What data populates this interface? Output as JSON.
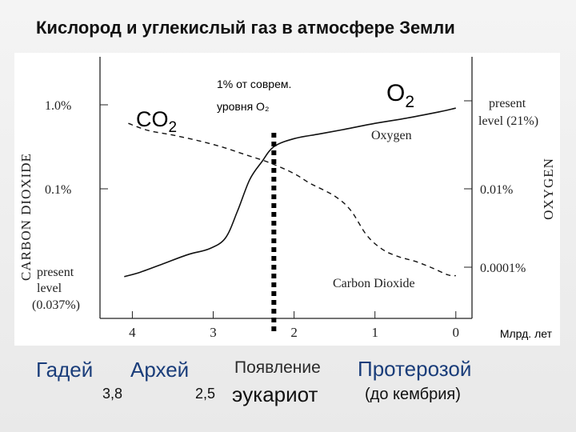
{
  "title": "Кислород и углекислый газ в атмосфере Земли",
  "chart_data": {
    "type": "line",
    "xlim": [
      4.4,
      -0.2
    ],
    "x_ticks": [
      4,
      3,
      2,
      1,
      0
    ],
    "x_tick_labels": [
      "4",
      "3",
      "2",
      "1",
      "0"
    ],
    "x_unit_label": "Млрд. лет",
    "left_axis": {
      "label": "CARBON DIOXIDE",
      "ticks": [
        {
          "label": "1.0%",
          "level": 2
        },
        {
          "label": "0.1%",
          "level": 1
        }
      ],
      "bottom_label": [
        "present",
        "level",
        "(0.037%)"
      ]
    },
    "right_axis": {
      "label": "OXYGEN",
      "ticks": [
        {
          "label": "0.01%",
          "level": 1
        },
        {
          "label": "0.0001%",
          "level": 0
        }
      ],
      "top_label": [
        "present",
        "level (21%)"
      ]
    },
    "series": [
      {
        "name": "Oxygen",
        "style": "solid",
        "x": [
          4.1,
          3.9,
          3.6,
          3.3,
          3.05,
          2.85,
          2.7,
          2.55,
          2.4,
          2.25,
          2.0,
          1.7,
          1.4,
          1.0,
          0.6,
          0.2,
          0.0
        ],
        "y": [
          0.02,
          0.07,
          0.17,
          0.27,
          0.33,
          0.45,
          0.75,
          1.1,
          1.3,
          1.47,
          1.56,
          1.61,
          1.66,
          1.73,
          1.79,
          1.86,
          1.9
        ]
      },
      {
        "name": "Carbon Dioxide",
        "style": "dashed",
        "x": [
          4.05,
          3.8,
          3.5,
          3.2,
          2.9,
          2.6,
          2.3,
          2.0,
          1.8,
          1.5,
          1.3,
          1.1,
          0.9,
          0.7,
          0.5,
          0.3,
          0.1,
          0.0
        ],
        "y": [
          1.73,
          1.65,
          1.6,
          1.54,
          1.47,
          1.38,
          1.29,
          1.17,
          1.06,
          0.92,
          0.76,
          0.48,
          0.32,
          0.24,
          0.19,
          0.12,
          0.04,
          0.03
        ]
      }
    ],
    "marker_line": {
      "x": 2.25,
      "label_lines": [
        "1% от соврем.",
        "уровня O₂"
      ]
    },
    "annotations": {
      "co2_label": "CO",
      "co2_sub": "2",
      "o2_label": "O",
      "o2_sub": "2",
      "oxygen_curve_label": "Oxygen",
      "co2_curve_label": "Carbon Dioxide"
    }
  },
  "eras": {
    "hadean": "Гадей",
    "archean": "Архей",
    "num_38": "3,8",
    "num_25": "2,5",
    "eukaryote_line1": "Появление",
    "eukaryote_line2": "эукариот",
    "proterozoic": "Протерозой",
    "proterozoic_note": "(до кембрия)"
  }
}
